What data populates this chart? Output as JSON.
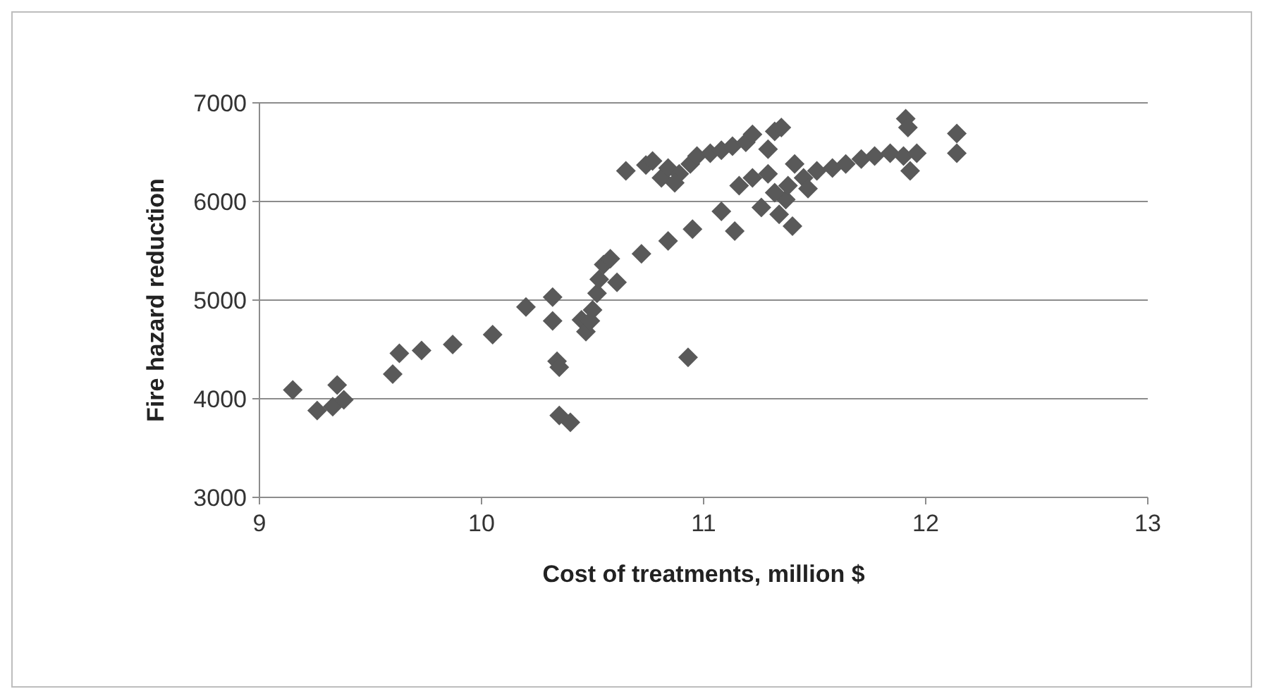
{
  "chart_data": {
    "type": "scatter",
    "xlabel": "Cost of treatments, million $",
    "ylabel": "Fire hazard reduction",
    "xlim": [
      9,
      13
    ],
    "xticks": [
      9,
      10,
      11,
      12,
      13
    ],
    "ylim": [
      3000,
      7000
    ],
    "yticks": [
      3000,
      4000,
      5000,
      6000,
      7000
    ],
    "grid": "y",
    "marker": "diamond",
    "series": [
      {
        "color": "#595959",
        "x": [
          9.15,
          9.26,
          9.33,
          9.35,
          9.38,
          9.6,
          9.63,
          9.73,
          9.87,
          10.05,
          10.2,
          10.32,
          10.32,
          10.34,
          10.35,
          10.35,
          10.4,
          10.45,
          10.47,
          10.49,
          10.5,
          10.52,
          10.53,
          10.55,
          10.58,
          10.61,
          10.72,
          10.84,
          10.95,
          11.08,
          11.14,
          10.93,
          10.65,
          10.74,
          10.81,
          10.84,
          10.89,
          10.94,
          10.97,
          11.03,
          11.08,
          11.13,
          11.19,
          11.22,
          11.32,
          11.35,
          11.29,
          10.77,
          10.87,
          11.16,
          11.22,
          11.29,
          11.37,
          11.38,
          11.26,
          11.34,
          11.4,
          11.45,
          11.51,
          11.58,
          11.64,
          11.71,
          11.77,
          11.84,
          11.9,
          11.96,
          11.93,
          11.91,
          11.92,
          12.14,
          12.14,
          11.41,
          11.47,
          11.32
        ],
        "values": [
          4090,
          3880,
          3920,
          4140,
          3990,
          4250,
          4460,
          4490,
          4550,
          4650,
          4930,
          5030,
          4790,
          4380,
          4320,
          3830,
          3760,
          4800,
          4680,
          4790,
          4900,
          5070,
          5210,
          5360,
          5420,
          5180,
          5470,
          5600,
          5720,
          5900,
          5700,
          4420,
          6310,
          6370,
          6240,
          6340,
          6280,
          6380,
          6460,
          6490,
          6520,
          6560,
          6600,
          6680,
          6710,
          6750,
          6530,
          6410,
          6190,
          6160,
          6240,
          6280,
          6020,
          6160,
          5940,
          5870,
          5750,
          6240,
          6310,
          6340,
          6380,
          6430,
          6460,
          6490,
          6460,
          6490,
          6310,
          6840,
          6750,
          6690,
          6490,
          6380,
          6130,
          6090
        ]
      }
    ]
  }
}
